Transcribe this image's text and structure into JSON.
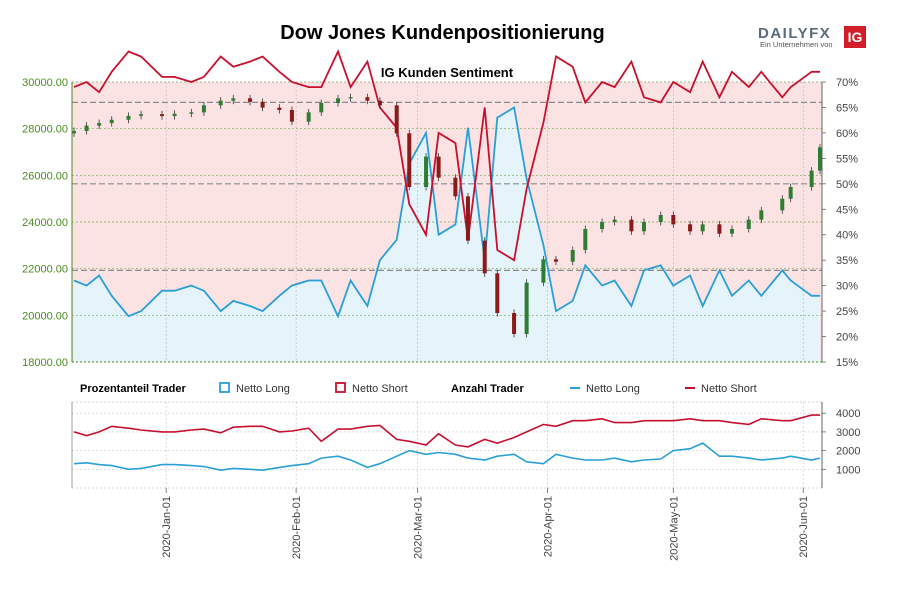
{
  "header": {
    "title": "Dow Jones Kundenpositionierung",
    "logo_main": "DAILYFX",
    "logo_sub": "Ein Unternehmen von",
    "logo_ig": "IG"
  },
  "chart_data": {
    "type": "line",
    "subtitle": "IG Kunden Sentiment",
    "colors": {
      "long": "#2a9fd6",
      "short": "#c8102e",
      "short_bg": "#fbe3e4",
      "long_bg": "#e5f3fb",
      "price_axis": "#4a8a22",
      "up_candle": "#2e7d32",
      "down_candle": "#8b1a1a"
    },
    "dates": [
      "2019-12-10",
      "2019-12-13",
      "2019-12-16",
      "2019-12-19",
      "2019-12-23",
      "2019-12-26",
      "2019-12-31",
      "2020-01-03",
      "2020-01-07",
      "2020-01-10",
      "2020-01-14",
      "2020-01-17",
      "2020-01-21",
      "2020-01-24",
      "2020-01-28",
      "2020-01-31",
      "2020-02-04",
      "2020-02-07",
      "2020-02-11",
      "2020-02-14",
      "2020-02-18",
      "2020-02-21",
      "2020-02-25",
      "2020-02-28",
      "2020-03-03",
      "2020-03-06",
      "2020-03-10",
      "2020-03-13",
      "2020-03-17",
      "2020-03-20",
      "2020-03-24",
      "2020-03-27",
      "2020-03-31",
      "2020-04-03",
      "2020-04-07",
      "2020-04-10",
      "2020-04-14",
      "2020-04-17",
      "2020-04-21",
      "2020-04-24",
      "2020-04-28",
      "2020-05-01",
      "2020-05-05",
      "2020-05-08",
      "2020-05-12",
      "2020-05-15",
      "2020-05-19",
      "2020-05-22",
      "2020-05-27",
      "2020-05-29",
      "2020-06-03",
      "2020-06-05"
    ],
    "price": [
      27900,
      28130,
      28240,
      28380,
      28550,
      28620,
      28540,
      28640,
      28700,
      29000,
      29200,
      29300,
      29150,
      28900,
      28800,
      28300,
      28700,
      29100,
      29300,
      29350,
      29200,
      29000,
      27800,
      25500,
      26800,
      25900,
      25100,
      23200,
      21800,
      20100,
      19200,
      21400,
      22400,
      22300,
      22800,
      23700,
      24000,
      24100,
      23600,
      24000,
      24300,
      23900,
      23600,
      23900,
      23500,
      23700,
      24100,
      24500,
      25000,
      25500,
      26200,
      27200
    ],
    "price_axis": {
      "ticks": [
        18000,
        20000,
        22000,
        24000,
        26000,
        28000,
        30000
      ],
      "labels": [
        "18000.00",
        "20000.00",
        "22000.00",
        "24000.00",
        "26000.00",
        "28000.00",
        "30000.00"
      ],
      "ylim": [
        18000,
        30000
      ]
    },
    "sentiment_axis": {
      "ticks": [
        15,
        20,
        25,
        30,
        35,
        40,
        45,
        50,
        55,
        60,
        65,
        70
      ],
      "labels": [
        "15%",
        "20%",
        "25%",
        "30%",
        "35%",
        "40%",
        "45%",
        "50%",
        "55%",
        "60%",
        "65%",
        "70%"
      ],
      "ylim": [
        15,
        70
      ]
    },
    "reference_lines": [
      66,
      50,
      33
    ],
    "net_long_pct": [
      31,
      30,
      32,
      28,
      24,
      25,
      29,
      29,
      30,
      29,
      25,
      27,
      26,
      25,
      28,
      30,
      31,
      31,
      24,
      31,
      26,
      35,
      39,
      54,
      60,
      40,
      42,
      61,
      35,
      63,
      65,
      51,
      38,
      25,
      27,
      34,
      30,
      31,
      26,
      33,
      34,
      30,
      32,
      26,
      33,
      28,
      31,
      28,
      33,
      31,
      28,
      28
    ],
    "net_short_pct": [
      69,
      70,
      68,
      72,
      76,
      75,
      71,
      71,
      70,
      71,
      75,
      73,
      74,
      75,
      72,
      70,
      69,
      69,
      76,
      69,
      74,
      65,
      61,
      46,
      40,
      60,
      58,
      39,
      65,
      37,
      35,
      49,
      62,
      75,
      73,
      66,
      70,
      69,
      74,
      67,
      66,
      70,
      68,
      74,
      67,
      72,
      69,
      72,
      67,
      69,
      72,
      72
    ],
    "legend": {
      "group1": "Prozentanteil Trader",
      "group2": "Anzahl Trader",
      "long": "Netto Long",
      "short": "Netto Short"
    },
    "count_axis": {
      "ticks": [
        1000,
        2000,
        3000,
        4000
      ],
      "labels": [
        "1000",
        "2000",
        "3000",
        "4000"
      ],
      "ylim": [
        0,
        4600
      ]
    },
    "net_long_count": [
      1300,
      1350,
      1250,
      1200,
      1000,
      1050,
      1250,
      1250,
      1200,
      1150,
      950,
      1050,
      1000,
      950,
      1100,
      1200,
      1300,
      1600,
      1700,
      1500,
      1100,
      1300,
      1700,
      2000,
      1800,
      1900,
      1800,
      1600,
      1500,
      1700,
      1800,
      1400,
      1300,
      1800,
      1600,
      1500,
      1500,
      1600,
      1400,
      1500,
      1550,
      2000,
      2100,
      2400,
      1700,
      1700,
      1600,
      1500,
      1600,
      1700,
      1500,
      1600
    ],
    "net_short_count": [
      3000,
      2800,
      3000,
      3300,
      3200,
      3100,
      3000,
      3000,
      3100,
      3150,
      2950,
      3250,
      3300,
      3300,
      3000,
      3050,
      3200,
      2500,
      3150,
      3150,
      3300,
      3350,
      2600,
      2500,
      2300,
      2900,
      2300,
      2200,
      2600,
      2400,
      2700,
      3000,
      3400,
      3300,
      3600,
      3600,
      3700,
      3500,
      3500,
      3600,
      3600,
      3600,
      3700,
      3600,
      3600,
      3500,
      3400,
      3700,
      3600,
      3600,
      3900,
      3900
    ],
    "x_tick_dates": [
      "2020-01-01",
      "2020-02-01",
      "2020-03-01",
      "2020-04-01",
      "2020-05-01",
      "2020-06-01"
    ],
    "x_tick_labels": [
      "2020-Jan-01",
      "2020-Feb-01",
      "2020-Mar-01",
      "2020-Apr-01",
      "2020-May-01",
      "2020-Jun-01"
    ]
  }
}
